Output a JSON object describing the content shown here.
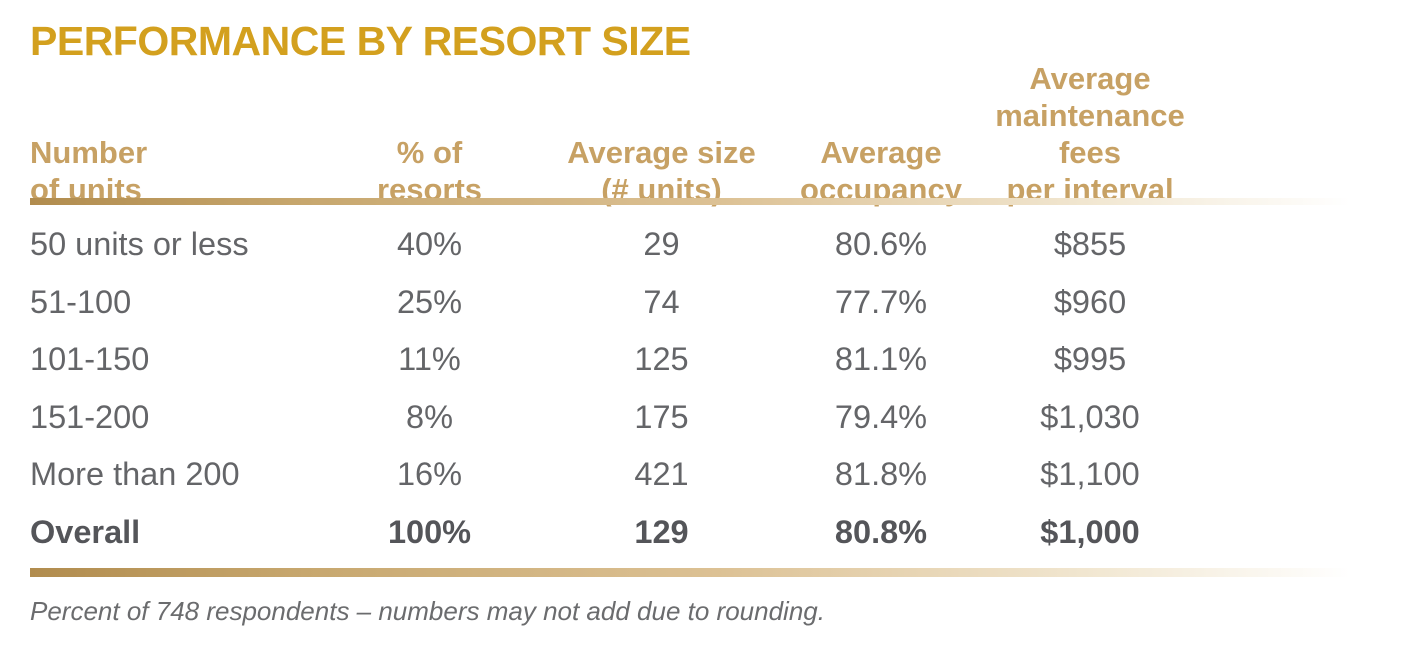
{
  "title": "PERFORMANCE BY RESORT SIZE",
  "footnote": "Percent of 748 respondents – numbers may not add due to rounding.",
  "colors": {
    "title_gold": "#d3a01e",
    "header_tan": "#c7a164",
    "body_gray": "#646568",
    "emphasis_gray": "#545559",
    "rule_gradient_left": "#b18c4e",
    "rule_gradient_right": "#ffffff",
    "background": "#ffffff"
  },
  "table": {
    "headers": [
      {
        "label": "Number\nof units"
      },
      {
        "label": "% of\nresorts"
      },
      {
        "label": "Average size\n(# units)"
      },
      {
        "label": "Average\noccupancy"
      },
      {
        "label": "Average\nmaintenance fees\nper interval"
      }
    ],
    "rows": [
      {
        "values": [
          "50 units or less",
          "40%",
          "29",
          "80.6%",
          "$855"
        ],
        "emphasis": false
      },
      {
        "values": [
          "51-100",
          "25%",
          "74",
          "77.7%",
          "$960"
        ],
        "emphasis": false
      },
      {
        "values": [
          "101-150",
          "11%",
          "125",
          "81.1%",
          "$995"
        ],
        "emphasis": false
      },
      {
        "values": [
          "151-200",
          "8%",
          "175",
          "79.4%",
          "$1,030"
        ],
        "emphasis": false
      },
      {
        "values": [
          "More than 200",
          "16%",
          "421",
          "81.8%",
          "$1,100"
        ],
        "emphasis": false
      },
      {
        "values": [
          "Overall",
          "100%",
          "129",
          "80.8%",
          "$1,000"
        ],
        "emphasis": true
      }
    ]
  },
  "chart_data": {
    "type": "table",
    "title": "PERFORMANCE BY RESORT SIZE",
    "columns": [
      "Number of units",
      "% of resorts",
      "Average size (# units)",
      "Average occupancy",
      "Average maintenance fees per interval"
    ],
    "rows": [
      [
        "50 units or less",
        "40%",
        29,
        "80.6%",
        "$855"
      ],
      [
        "51-100",
        "25%",
        74,
        "77.7%",
        "$960"
      ],
      [
        "101-150",
        "11%",
        125,
        "81.1%",
        "$995"
      ],
      [
        "151-200",
        "8%",
        175,
        "79.4%",
        "$1,030"
      ],
      [
        "More than 200",
        "16%",
        421,
        "81.8%",
        "$1,100"
      ],
      [
        "Overall",
        "100%",
        129,
        "80.8%",
        "$1,000"
      ]
    ],
    "footnote": "Percent of 748 respondents – numbers may not add due to rounding."
  }
}
